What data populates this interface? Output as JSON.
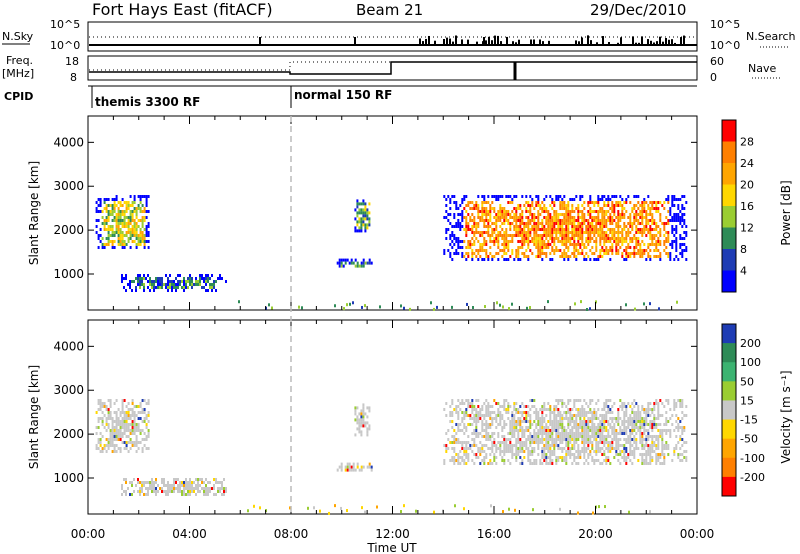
{
  "header": {
    "station": "Fort Hays East (fitACF)",
    "beam": "Beam 21",
    "date": "29/Dec/2010"
  },
  "strips": {
    "nsky_label": "N.Sky",
    "nsky_ticks": [
      "10^5",
      "10^0"
    ],
    "nsearch_label": "N.Search",
    "nsearch_ticks": [
      "10^5",
      "10^0"
    ],
    "freq_label": "Freq.",
    "freq_unit": "[MHz]",
    "freq_ticks": [
      "18",
      "8"
    ],
    "nave_label": "Nave",
    "nave_ticks": [
      "60",
      "0"
    ],
    "cpid_label": "CPID",
    "cpid_modes": [
      {
        "label": "themis 3300 RF",
        "start_hour": 0
      },
      {
        "label": "normal 150 RF",
        "start_hour": 8
      }
    ]
  },
  "chart_data": [
    {
      "type": "heatmap",
      "name": "power",
      "ylabel": "Slant Range [km]",
      "yticks": [
        "1000",
        "2000",
        "3000",
        "4000"
      ],
      "ylim": [
        180,
        4600
      ],
      "xlim": [
        0,
        24
      ],
      "colorbar_label": "Power [dB]",
      "colorbar_ticks": [
        "28",
        "24",
        "20",
        "16",
        "12",
        "8",
        "4"
      ],
      "colorbar_colors": [
        "#ff0000",
        "#ff7f00",
        "#ffa500",
        "#ffd700",
        "#9acd32",
        "#2e8b57",
        "#1e3cb4",
        "#0000ff"
      ],
      "regions": [
        {
          "t0": 0.3,
          "t1": 2.4,
          "r0": 1600,
          "r1": 2800,
          "level": 3
        },
        {
          "t0": 1.3,
          "t1": 5.4,
          "r0": 650,
          "r1": 1000,
          "level": 1
        },
        {
          "t0": 9.8,
          "t1": 11.2,
          "r0": 1150,
          "r1": 1350,
          "level": 1
        },
        {
          "t0": 10.5,
          "t1": 11.1,
          "r0": 2000,
          "r1": 2700,
          "level": 2
        },
        {
          "t0": 14.0,
          "t1": 23.6,
          "r0": 1300,
          "r1": 2800,
          "level": 5
        }
      ]
    },
    {
      "type": "heatmap",
      "name": "velocity",
      "ylabel": "Slant Range [km]",
      "yticks": [
        "1000",
        "2000",
        "3000",
        "4000"
      ],
      "ylim": [
        180,
        4600
      ],
      "xlim": [
        0,
        24
      ],
      "xlabel": "Time UT",
      "xticks": [
        "00:00",
        "04:00",
        "08:00",
        "12:00",
        "16:00",
        "20:00",
        "00:00"
      ],
      "colorbar_label": "Velocity [m s⁻¹]",
      "colorbar_ticks": [
        "200",
        "100",
        "50",
        "15",
        "-15",
        "-50",
        "-100",
        "-200"
      ],
      "colorbar_colors": [
        "#1e3cb4",
        "#2e8b57",
        "#3cb371",
        "#9acd32",
        "#c8c8c8",
        "#ffd700",
        "#ffa500",
        "#ff7f00",
        "#ff0000"
      ],
      "regions": [
        {
          "t0": 0.3,
          "t1": 2.4,
          "r0": 1600,
          "r1": 2800,
          "level": 4
        },
        {
          "t0": 1.3,
          "t1": 5.4,
          "r0": 650,
          "r1": 1000,
          "level": 4
        },
        {
          "t0": 9.8,
          "t1": 11.2,
          "r0": 1150,
          "r1": 1350,
          "level": 4
        },
        {
          "t0": 10.5,
          "t1": 11.1,
          "r0": 2000,
          "r1": 2700,
          "level": 4
        },
        {
          "t0": 14.0,
          "t1": 23.6,
          "r0": 1300,
          "r1": 2800,
          "level": 4
        }
      ]
    }
  ]
}
